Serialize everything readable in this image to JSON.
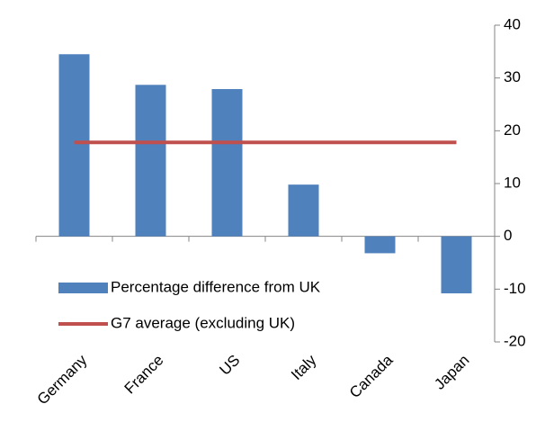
{
  "chart_data": {
    "type": "bar",
    "categories": [
      "Germany",
      "France",
      "US",
      "Italy",
      "Canada",
      "Japan"
    ],
    "series": [
      {
        "name": "Percentage difference from UK",
        "type": "bar",
        "color": "#4f81bd",
        "values": [
          34.5,
          28.7,
          27.9,
          9.8,
          -3.2,
          -10.8
        ]
      },
      {
        "name": "G7 average (excluding UK)",
        "type": "line",
        "color": "#c0504d",
        "values": [
          17.8,
          17.8,
          17.8,
          17.8,
          17.8,
          17.8
        ]
      }
    ],
    "ylim": [
      -20,
      40
    ],
    "yticks": [
      40,
      30,
      20,
      10,
      0,
      -10,
      -20
    ],
    "y_axis_side": "right",
    "grid": false,
    "legend": "lower left"
  }
}
